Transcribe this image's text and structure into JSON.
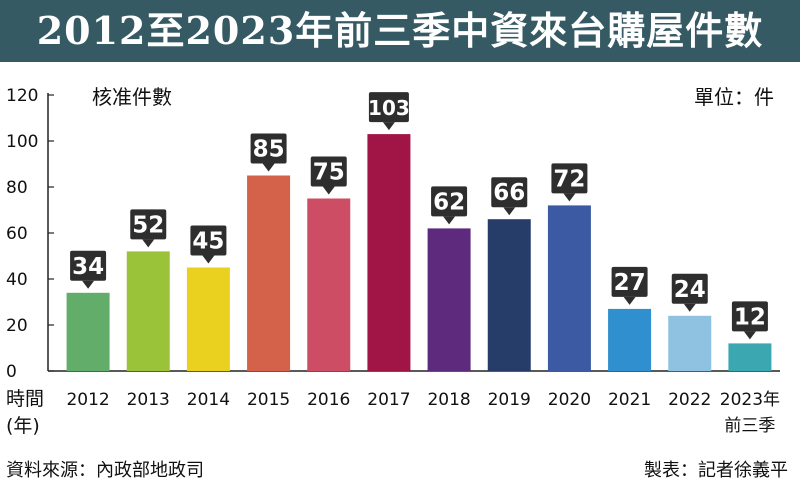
{
  "title": "2012至2023年前三季中資來台購屋件數",
  "chart_data": {
    "type": "bar",
    "title": "2012至2023年前三季中資來台購屋件數",
    "ylabel": "核准件數",
    "unit_label": "單位：件",
    "xlabel": "時間(年)",
    "ylim": [
      0,
      120
    ],
    "yticks": [
      0,
      20,
      40,
      60,
      80,
      100,
      120
    ],
    "grid": false,
    "categories": [
      "2012",
      "2013",
      "2014",
      "2015",
      "2016",
      "2017",
      "2018",
      "2019",
      "2020",
      "2021",
      "2022",
      "2023年前三季"
    ],
    "values": [
      34,
      52,
      45,
      85,
      75,
      103,
      62,
      66,
      72,
      27,
      24,
      12
    ],
    "colors": [
      "#63ad6a",
      "#9bc33a",
      "#ead01f",
      "#d4624a",
      "#cd4e64",
      "#a11546",
      "#5e2a7e",
      "#263d6a",
      "#3c5aa3",
      "#2f8fcf",
      "#8ec2e0",
      "#3aa7b1"
    ],
    "label_bg_color": "#2e2e2e"
  },
  "footer": {
    "source": "資料來源：內政部地政司",
    "credit": "製表：記者徐義平"
  }
}
